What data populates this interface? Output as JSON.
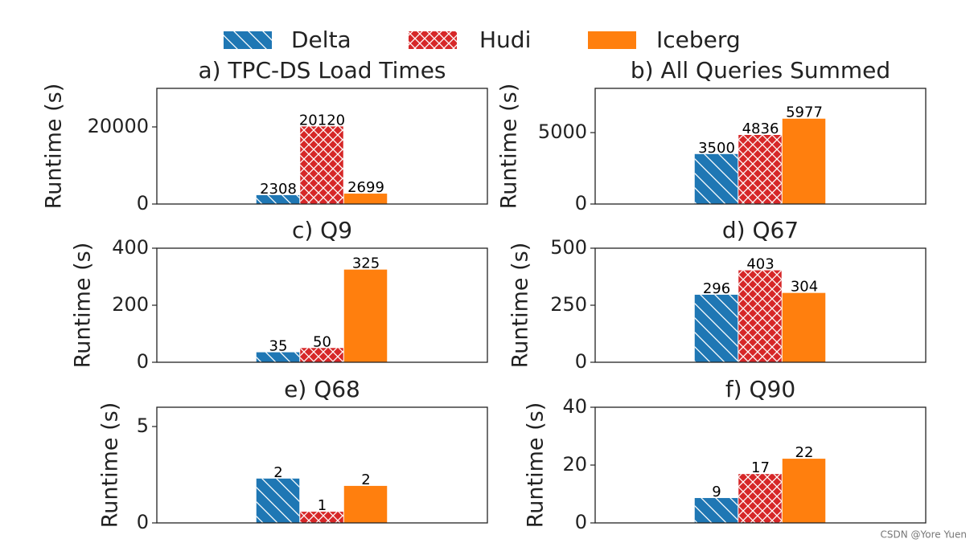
{
  "chart_data": [
    {
      "type": "bar",
      "title": "a) TPC-DS Load Times",
      "ylabel": "Runtime (s)",
      "ylim": [
        0,
        30000
      ],
      "yticks": [
        0,
        20000
      ],
      "series": [
        {
          "name": "Delta",
          "color": "#1f77b4",
          "hatch": "diagonal",
          "values": [
            2308
          ]
        },
        {
          "name": "Hudi",
          "color": "#d62728",
          "hatch": "cross",
          "values": [
            20120
          ]
        },
        {
          "name": "Iceberg",
          "color": "#ff7f0e",
          "hatch": null,
          "values": [
            2699
          ]
        }
      ]
    },
    {
      "type": "bar",
      "title": "b) All Queries Summed",
      "ylabel": "Runtime (s)",
      "ylim": [
        0,
        8100
      ],
      "yticks": [
        0,
        5000
      ],
      "series": [
        {
          "color": "#1f77b4",
          "hatch": "diagonal",
          "values": [
            3500
          ]
        },
        {
          "color": "#d62728",
          "hatch": "cross",
          "values": [
            4836
          ]
        },
        {
          "color": "#ff7f0e",
          "hatch": null,
          "values": [
            5977
          ]
        }
      ]
    },
    {
      "type": "bar",
      "title": "c) Q9",
      "ylabel": "Runtime (s)",
      "ylim": [
        0,
        400
      ],
      "yticks": [
        0,
        200,
        400
      ],
      "series": [
        {
          "color": "#1f77b4",
          "hatch": "diagonal",
          "values": [
            35
          ]
        },
        {
          "color": "#d62728",
          "hatch": "cross",
          "values": [
            50
          ]
        },
        {
          "color": "#ff7f0e",
          "hatch": null,
          "values": [
            325
          ]
        }
      ]
    },
    {
      "type": "bar",
      "title": "d) Q67",
      "ylabel": "Runtime (s)",
      "ylim": [
        0,
        500
      ],
      "yticks": [
        0,
        250,
        500
      ],
      "series": [
        {
          "color": "#1f77b4",
          "hatch": "diagonal",
          "values": [
            296
          ]
        },
        {
          "color": "#d62728",
          "hatch": "cross",
          "values": [
            403
          ]
        },
        {
          "color": "#ff7f0e",
          "hatch": null,
          "values": [
            304
          ]
        }
      ]
    },
    {
      "type": "bar",
      "title": "e) Q68",
      "ylabel": "Runtime (s)",
      "ylim": [
        0,
        6
      ],
      "yticks": [
        0,
        5
      ],
      "series": [
        {
          "color": "#1f77b4",
          "hatch": "diagonal",
          "values": [
            2.3
          ],
          "value_labels": [
            "2"
          ]
        },
        {
          "color": "#d62728",
          "hatch": "cross",
          "values": [
            0.58
          ],
          "value_labels": [
            "1"
          ]
        },
        {
          "color": "#ff7f0e",
          "hatch": null,
          "values": [
            1.92
          ],
          "value_labels": [
            "2"
          ]
        }
      ]
    },
    {
      "type": "bar",
      "title": "f) Q90",
      "ylabel": "Runtime (s)",
      "ylim": [
        0,
        40
      ],
      "yticks": [
        0,
        20,
        40
      ],
      "series": [
        {
          "color": "#1f77b4",
          "hatch": "diagonal",
          "values": [
            8.6
          ],
          "value_labels": [
            "9"
          ]
        },
        {
          "color": "#d62728",
          "hatch": "cross",
          "values": [
            16.9
          ],
          "value_labels": [
            "17"
          ]
        },
        {
          "color": "#ff7f0e",
          "hatch": null,
          "values": [
            22.2
          ],
          "value_labels": [
            "22"
          ]
        }
      ]
    }
  ],
  "watermark": "CSDN @Yore Yuen"
}
